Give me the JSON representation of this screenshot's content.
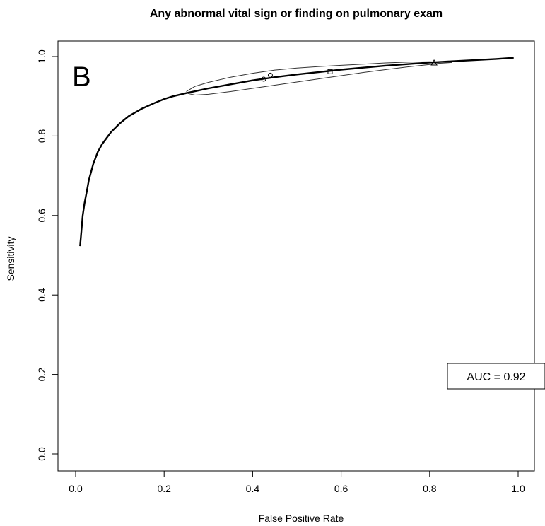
{
  "chart_data": {
    "type": "line",
    "title": "Any abnormal vital sign or finding on pulmonary exam",
    "xlabel": "False Positive Rate",
    "ylabel": "Sensitivity",
    "xlim": [
      0,
      1
    ],
    "ylim": [
      0,
      1
    ],
    "x_ticks": [
      "0.0",
      "0.2",
      "0.4",
      "0.6",
      "0.8",
      "1.0"
    ],
    "y_ticks": [
      "0.0",
      "0.2",
      "0.4",
      "0.6",
      "0.8",
      "1.0"
    ],
    "grid": false,
    "panel_label": "B",
    "auc_label": "AUC = 0.92",
    "series": [
      {
        "style": "roc-curve",
        "x": [
          0.01,
          0.013,
          0.016,
          0.02,
          0.025,
          0.03,
          0.04,
          0.05,
          0.06,
          0.08,
          0.1,
          0.12,
          0.15,
          0.18,
          0.2,
          0.22,
          0.25,
          0.3,
          0.35,
          0.4,
          0.45,
          0.5,
          0.55,
          0.6,
          0.65,
          0.7,
          0.75,
          0.8,
          0.85,
          0.9,
          0.95,
          0.99
        ],
        "y": [
          0.523,
          0.56,
          0.6,
          0.63,
          0.66,
          0.69,
          0.73,
          0.76,
          0.78,
          0.81,
          0.832,
          0.85,
          0.869,
          0.884,
          0.893,
          0.9,
          0.908,
          0.92,
          0.93,
          0.94,
          0.948,
          0.955,
          0.961,
          0.967,
          0.972,
          0.977,
          0.981,
          0.985,
          0.988,
          0.991,
          0.994,
          0.997
        ]
      },
      {
        "style": "confidence-upper",
        "x": [
          0.25,
          0.27,
          0.3,
          0.35,
          0.4,
          0.45,
          0.5,
          0.55,
          0.6,
          0.65,
          0.7,
          0.75,
          0.8,
          0.82,
          0.85
        ],
        "y": [
          0.912,
          0.925,
          0.935,
          0.948,
          0.958,
          0.966,
          0.971,
          0.975,
          0.978,
          0.981,
          0.984,
          0.986,
          0.987,
          0.986,
          0.985
        ]
      },
      {
        "style": "confidence-lower",
        "x": [
          0.25,
          0.27,
          0.3,
          0.35,
          0.4,
          0.45,
          0.5,
          0.55,
          0.6,
          0.65,
          0.7,
          0.75,
          0.8,
          0.82,
          0.85
        ],
        "y": [
          0.908,
          0.903,
          0.905,
          0.912,
          0.92,
          0.928,
          0.936,
          0.944,
          0.952,
          0.96,
          0.967,
          0.974,
          0.98,
          0.983,
          0.985
        ]
      }
    ],
    "points": [
      {
        "shape": "circle",
        "x": 0.425,
        "y": 0.943
      },
      {
        "shape": "circle",
        "x": 0.44,
        "y": 0.953
      },
      {
        "shape": "square",
        "x": 0.575,
        "y": 0.962
      },
      {
        "shape": "triangle",
        "x": 0.81,
        "y": 0.984
      }
    ]
  }
}
